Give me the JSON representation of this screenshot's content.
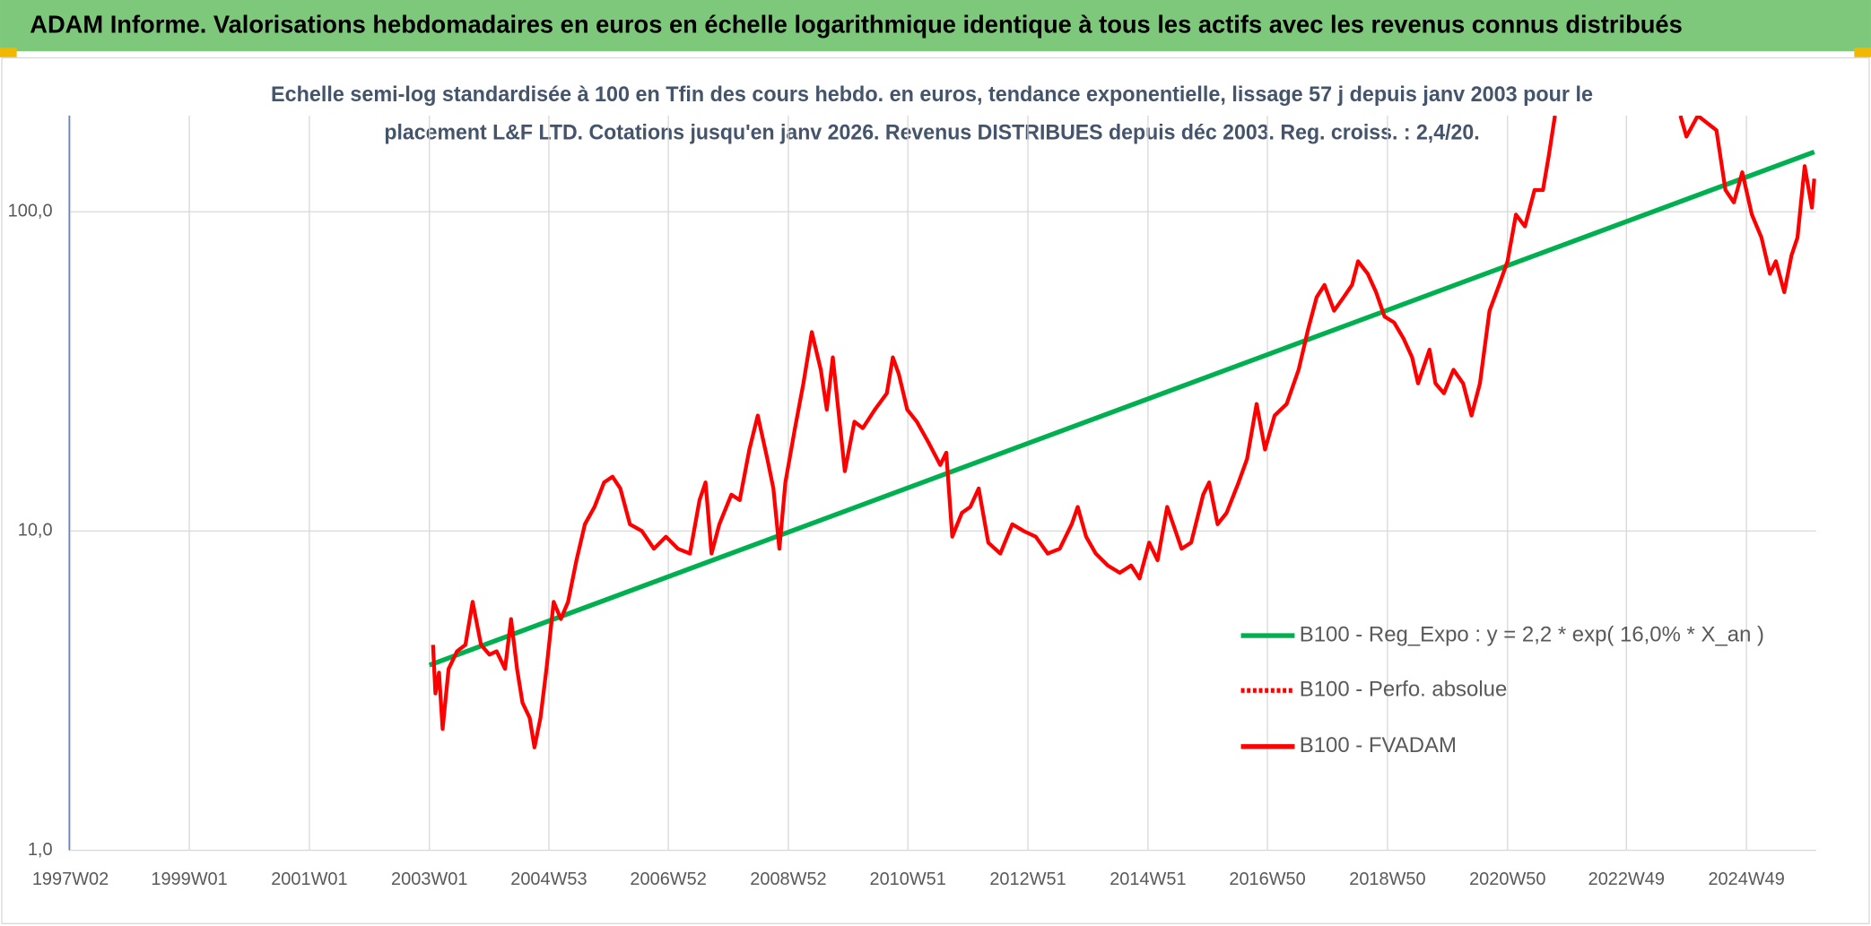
{
  "chart_data": {
    "type": "line",
    "title": "ADAM Informe. Valorisations hebdomadaires en euros en échelle logarithmique identique à tous les actifs avec les revenus connus distribués",
    "subtitle": [
      "Echelle semi-log standardisée à 100 en Tfin des cours hebdo. en euros, tendance exponentielle, lissage 57 j depuis janv 2003 pour le",
      "placement L&F LTD. Cotations jusqu'en janv 2026. Revenus DISTRIBUES depuis déc 2003. Reg. croiss. : 2,4/20."
    ],
    "log_scale": true,
    "grid": true,
    "legend": "right",
    "xlim": [
      1997.0,
      2026.1
    ],
    "xticks": [
      {
        "value": 1997.02,
        "label": "1997W02"
      },
      {
        "value": 1999.0,
        "label": "1999W01"
      },
      {
        "value": 2001.0,
        "label": "2001W01"
      },
      {
        "value": 2003.0,
        "label": "2003W01"
      },
      {
        "value": 2004.99,
        "label": "2004W53"
      },
      {
        "value": 2006.98,
        "label": "2006W52"
      },
      {
        "value": 2008.98,
        "label": "2008W52"
      },
      {
        "value": 2010.97,
        "label": "2010W51"
      },
      {
        "value": 2012.97,
        "label": "2012W51"
      },
      {
        "value": 2014.97,
        "label": "2014W51"
      },
      {
        "value": 2016.96,
        "label": "2016W50"
      },
      {
        "value": 2018.96,
        "label": "2018W50"
      },
      {
        "value": 2020.96,
        "label": "2020W50"
      },
      {
        "value": 2022.94,
        "label": "2022W49"
      },
      {
        "value": 2024.94,
        "label": "2024W49"
      }
    ],
    "ylim": [
      1,
      200
    ],
    "yticks": [
      {
        "value": 1,
        "label": "1,0"
      },
      {
        "value": 10,
        "label": "10,0"
      },
      {
        "value": 100,
        "label": "100,0"
      }
    ],
    "series": [
      {
        "name": "B100 - Reg_Expo : y = 2,2 * exp( 16,0% *  X_an )",
        "color": "#00b050",
        "dash": "solid",
        "x": [
          2003.0,
          2026.07
        ],
        "values": [
          3.8,
          154
        ]
      },
      {
        "name": "B100 - Perfo. absolue",
        "color": "#ff0000",
        "dash": "dotted"
      },
      {
        "name": "B100 - FVADAM",
        "color": "#ff0000",
        "dash": "solid",
        "x": [
          2003.06,
          2003.1,
          2003.16,
          2003.22,
          2003.32,
          2003.46,
          2003.6,
          2003.72,
          2003.86,
          2004.0,
          2004.12,
          2004.26,
          2004.36,
          2004.46,
          2004.55,
          2004.67,
          2004.75,
          2004.85,
          2004.95,
          2005.07,
          2005.19,
          2005.31,
          2005.45,
          2005.59,
          2005.75,
          2005.91,
          2006.05,
          2006.18,
          2006.34,
          2006.54,
          2006.74,
          2006.94,
          2007.14,
          2007.34,
          2007.5,
          2007.6,
          2007.7,
          2007.83,
          2008.03,
          2008.17,
          2008.33,
          2008.47,
          2008.63,
          2008.73,
          2008.83,
          2008.93,
          2009.09,
          2009.23,
          2009.37,
          2009.52,
          2009.62,
          2009.72,
          2009.92,
          2010.08,
          2010.22,
          2010.42,
          2010.62,
          2010.72,
          2010.82,
          2010.96,
          2011.12,
          2011.31,
          2011.51,
          2011.61,
          2011.71,
          2011.87,
          2012.01,
          2012.15,
          2012.31,
          2012.51,
          2012.71,
          2012.9,
          2013.1,
          2013.3,
          2013.5,
          2013.7,
          2013.8,
          2013.94,
          2014.1,
          2014.3,
          2014.5,
          2014.69,
          2014.83,
          2014.99,
          2015.13,
          2015.29,
          2015.39,
          2015.53,
          2015.69,
          2015.89,
          2015.99,
          2016.13,
          2016.28,
          2016.48,
          2016.62,
          2016.78,
          2016.92,
          2017.08,
          2017.28,
          2017.48,
          2017.64,
          2017.78,
          2017.91,
          2018.07,
          2018.23,
          2018.37,
          2018.47,
          2018.63,
          2018.77,
          2018.91,
          2019.07,
          2019.23,
          2019.37,
          2019.47,
          2019.66,
          2019.76,
          2019.9,
          2020.06,
          2020.22,
          2020.36,
          2020.5,
          2020.66,
          2020.82,
          2020.96,
          2021.1,
          2021.25,
          2021.41,
          2021.55,
          2021.65,
          2021.75,
          2022.5,
          2023.84,
          2023.94,
          2024.13,
          2024.44,
          2024.59,
          2024.73,
          2024.87,
          2025.03,
          2025.19,
          2025.33,
          2025.43,
          2025.57,
          2025.69,
          2025.79,
          2025.91,
          2026.03,
          2026.07
        ],
        "values": [
          4.4,
          3.1,
          3.6,
          2.4,
          3.7,
          4.2,
          4.4,
          6.0,
          4.4,
          4.1,
          4.2,
          3.7,
          5.3,
          3.7,
          2.9,
          2.6,
          2.1,
          2.6,
          3.7,
          6.0,
          5.3,
          6.0,
          8.1,
          10.5,
          11.9,
          14.2,
          14.8,
          13.6,
          10.5,
          10.0,
          8.8,
          9.6,
          8.8,
          8.5,
          12.5,
          14.2,
          8.5,
          10.5,
          13.0,
          12.5,
          18.0,
          23.0,
          16.8,
          13.6,
          8.8,
          14.2,
          21.0,
          29.0,
          42.0,
          32.0,
          24.0,
          35.0,
          15.4,
          22.0,
          21.0,
          24.0,
          27.0,
          35.0,
          31.0,
          24.0,
          22.0,
          19.0,
          16.1,
          17.6,
          9.6,
          11.4,
          11.9,
          13.6,
          9.2,
          8.5,
          10.5,
          10.0,
          9.6,
          8.5,
          8.8,
          10.5,
          11.9,
          9.6,
          8.5,
          7.8,
          7.4,
          7.8,
          7.1,
          9.2,
          8.1,
          11.9,
          10.5,
          8.8,
          9.2,
          13.0,
          14.2,
          10.5,
          11.4,
          14.2,
          16.8,
          25.0,
          18.0,
          23.0,
          25.0,
          32.0,
          43.0,
          54.0,
          59.0,
          49.0,
          54.0,
          59.0,
          70.0,
          64.0,
          56.0,
          47.0,
          45.0,
          40.0,
          35.0,
          29.0,
          37.0,
          29.0,
          27.0,
          32.0,
          29.0,
          23.0,
          29.0,
          49.0,
          59.0,
          70.0,
          98.0,
          90.0,
          117.0,
          117.0,
          151.0,
          200.0,
          null,
          200.0,
          172.0,
          200.0,
          180.0,
          117.0,
          107.0,
          133.0,
          98.0,
          83.0,
          64.0,
          70.0,
          56.0,
          73.0,
          83.0,
          139.0,
          103.0,
          127.0
        ]
      }
    ]
  }
}
